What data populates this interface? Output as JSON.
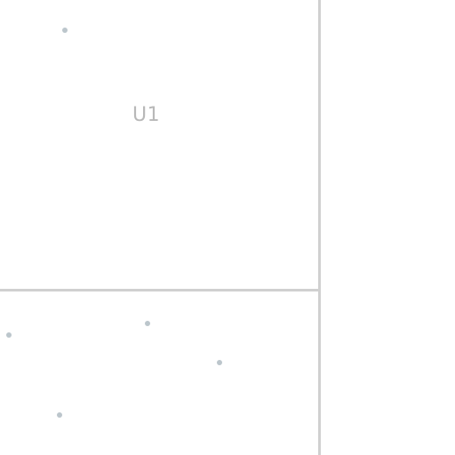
{
  "regions": {
    "top_left": {
      "label": "U1"
    }
  },
  "colors": {
    "divider": "#d0d0d0",
    "label": "#b8b8b8",
    "marker": "#bcc6cc",
    "background": "#ffffff"
  },
  "marker_count": 5
}
